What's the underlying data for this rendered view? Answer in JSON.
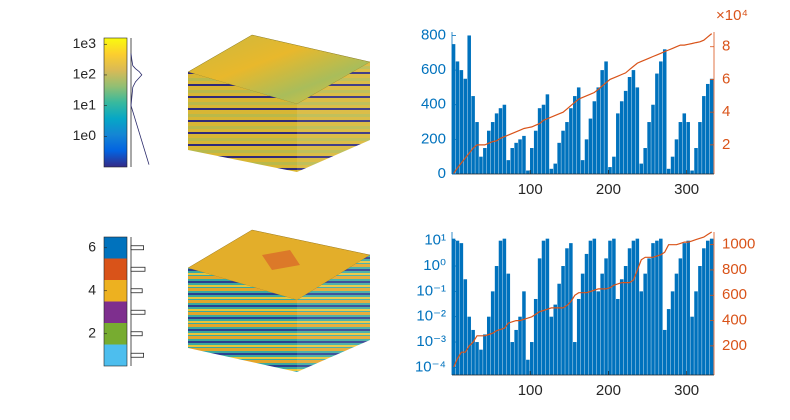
{
  "chart_data": [
    {
      "type": "colorbar",
      "yscale": "log",
      "ylim": [
        0.1,
        1600
      ],
      "yticks": [
        {
          "value": 1,
          "label": "1e0"
        },
        {
          "value": 10,
          "label": "1e1"
        },
        {
          "value": 100,
          "label": "1e2"
        },
        {
          "value": 1000,
          "label": "1e3"
        }
      ],
      "colormap": [
        "#352a87",
        "#0363e1",
        "#1485d4",
        "#06a7c6",
        "#38b99e",
        "#92bf73",
        "#d9ba56",
        "#fcce2e",
        "#f9fb0e"
      ],
      "hist_y": [
        0.12,
        10,
        20,
        40,
        60,
        80,
        100,
        130,
        160,
        200,
        300,
        500
      ],
      "hist": [
        20,
        0,
        1,
        2,
        5,
        9,
        12,
        9,
        5,
        2,
        1,
        0
      ]
    },
    {
      "type": "bar",
      "xlim": [
        0,
        335
      ],
      "xticks": [
        100,
        200,
        300
      ],
      "ylim": [
        0,
        820
      ],
      "yticks": [
        0,
        200,
        400,
        600,
        800
      ],
      "y2lim": [
        2200,
        89000
      ],
      "y2ticks": [
        {
          "value": 20000,
          "label": "2"
        },
        {
          "value": 40000,
          "label": "4"
        },
        {
          "value": 60000,
          "label": "6"
        },
        {
          "value": 80000,
          "label": "8"
        }
      ],
      "y2_multiplier": "×10⁴",
      "x": [
        2,
        7,
        12,
        17,
        22,
        27,
        32,
        37,
        42,
        47,
        52,
        57,
        62,
        67,
        72,
        77,
        82,
        87,
        92,
        97,
        102,
        107,
        112,
        117,
        122,
        127,
        132,
        137,
        142,
        147,
        152,
        157,
        162,
        167,
        172,
        177,
        182,
        187,
        192,
        197,
        202,
        207,
        212,
        217,
        222,
        227,
        232,
        237,
        242,
        247,
        252,
        257,
        262,
        267,
        272,
        277,
        282,
        287,
        292,
        297,
        302,
        307,
        312,
        317,
        322,
        327,
        332
      ],
      "series": [
        {
          "color": "#0072bd",
          "values": [
            750,
            650,
            600,
            550,
            800,
            450,
            300,
            100,
            150,
            250,
            300,
            350,
            380,
            400,
            80,
            150,
            180,
            200,
            220,
            20,
            150,
            250,
            380,
            400,
            460,
            30,
            60,
            180,
            250,
            300,
            380,
            450,
            500,
            80,
            200,
            320,
            420,
            500,
            600,
            650,
            40,
            100,
            350,
            420,
            480,
            560,
            600,
            500,
            60,
            150,
            300,
            400,
            580,
            650,
            720,
            30,
            100,
            200,
            300,
            350,
            300,
            20,
            150,
            300,
            450,
            520,
            550
          ]
        },
        {
          "color": "#d95319",
          "axis": "y2",
          "values": [
            2500,
            6000,
            9000,
            12000,
            15000,
            18000,
            20000,
            20000,
            20000,
            21000,
            22000,
            22500,
            24000,
            25000,
            26000,
            27000,
            28000,
            29000,
            30000,
            30500,
            31000,
            32000,
            33000,
            35000,
            36000,
            37000,
            38000,
            39000,
            40000,
            42000,
            44000,
            46000,
            48000,
            49000,
            50000,
            51000,
            52000,
            54000,
            56000,
            58000,
            60000,
            61000,
            62000,
            63000,
            64000,
            66000,
            68000,
            70000,
            71000,
            72000,
            73000,
            74000,
            75000,
            76000,
            77000,
            78000,
            79000,
            80000,
            81000,
            81000,
            81500,
            82000,
            82500,
            83000,
            84000,
            86000,
            88000
          ]
        }
      ]
    },
    {
      "type": "colorbar",
      "ylim": [
        0.5,
        6.5
      ],
      "yticks": [
        2,
        4,
        6
      ],
      "levels": [
        1,
        2,
        3,
        4,
        5,
        6
      ],
      "colors": [
        "#4dbeee",
        "#77ac30",
        "#7e2f8e",
        "#edb120",
        "#d95319",
        "#0072bd"
      ],
      "hist": [
        0.9,
        0.8,
        1,
        0.8,
        1,
        0.9
      ]
    },
    {
      "type": "bar",
      "xlim": [
        0,
        335
      ],
      "xticks": [
        100,
        200,
        300
      ],
      "yscale": "log",
      "ylim": [
        5e-05,
        22
      ],
      "yticks": [
        {
          "value": 0.0001,
          "label": "10⁻⁴"
        },
        {
          "value": 0.001,
          "label": "10⁻³"
        },
        {
          "value": 0.01,
          "label": "10⁻²"
        },
        {
          "value": 0.1,
          "label": "10⁻¹"
        },
        {
          "value": 1,
          "label": "10⁰"
        },
        {
          "value": 10,
          "label": "10¹"
        }
      ],
      "y2lim": [
        -30,
        1100
      ],
      "y2ticks": [
        200,
        400,
        600,
        800,
        1000
      ],
      "x": [
        2,
        7,
        12,
        17,
        22,
        27,
        32,
        37,
        42,
        47,
        52,
        57,
        62,
        67,
        72,
        77,
        82,
        87,
        92,
        97,
        102,
        107,
        112,
        117,
        122,
        127,
        132,
        137,
        142,
        147,
        152,
        157,
        162,
        167,
        172,
        177,
        182,
        187,
        192,
        197,
        202,
        207,
        212,
        217,
        222,
        227,
        232,
        237,
        242,
        247,
        252,
        257,
        262,
        267,
        272,
        277,
        282,
        287,
        292,
        297,
        302,
        307,
        312,
        317,
        322,
        327,
        332
      ],
      "series": [
        {
          "color": "#0072bd",
          "values": [
            12,
            10,
            8,
            0.3,
            0.01,
            0.003,
            0.001,
            0.0005,
            0.002,
            0.01,
            0.1,
            1,
            10,
            12,
            0.5,
            0.001,
            0.003,
            0.01,
            0.1,
            0.0002,
            0.001,
            0.05,
            2,
            10,
            12,
            0.01,
            0.03,
            0.2,
            1,
            5,
            8,
            0.001,
            0.05,
            0.5,
            3,
            10,
            12,
            0.1,
            0.5,
            2,
            10,
            12,
            0.05,
            0.3,
            1,
            5,
            10,
            12,
            0.1,
            0.5,
            2,
            8,
            10,
            12,
            0.003,
            0.02,
            0.1,
            0.5,
            2,
            8,
            10,
            0.01,
            0.1,
            1,
            5,
            10,
            12
          ]
        },
        {
          "color": "#d95319",
          "axis": "y2",
          "values": [
            30,
            100,
            150,
            150,
            200,
            230,
            280,
            280,
            280,
            290,
            300,
            320,
            330,
            340,
            380,
            390,
            400,
            400,
            410,
            420,
            430,
            450,
            470,
            480,
            490,
            500,
            500,
            500,
            500,
            520,
            550,
            600,
            620,
            620,
            620,
            630,
            640,
            650,
            650,
            650,
            660,
            680,
            690,
            700,
            700,
            700,
            720,
            800,
            880,
            900,
            900,
            900,
            910,
            920,
            940,
            1000,
            1000,
            1000,
            1010,
            1020,
            1020,
            1030,
            1040,
            1050,
            1060,
            1080,
            1100
          ]
        }
      ]
    }
  ]
}
